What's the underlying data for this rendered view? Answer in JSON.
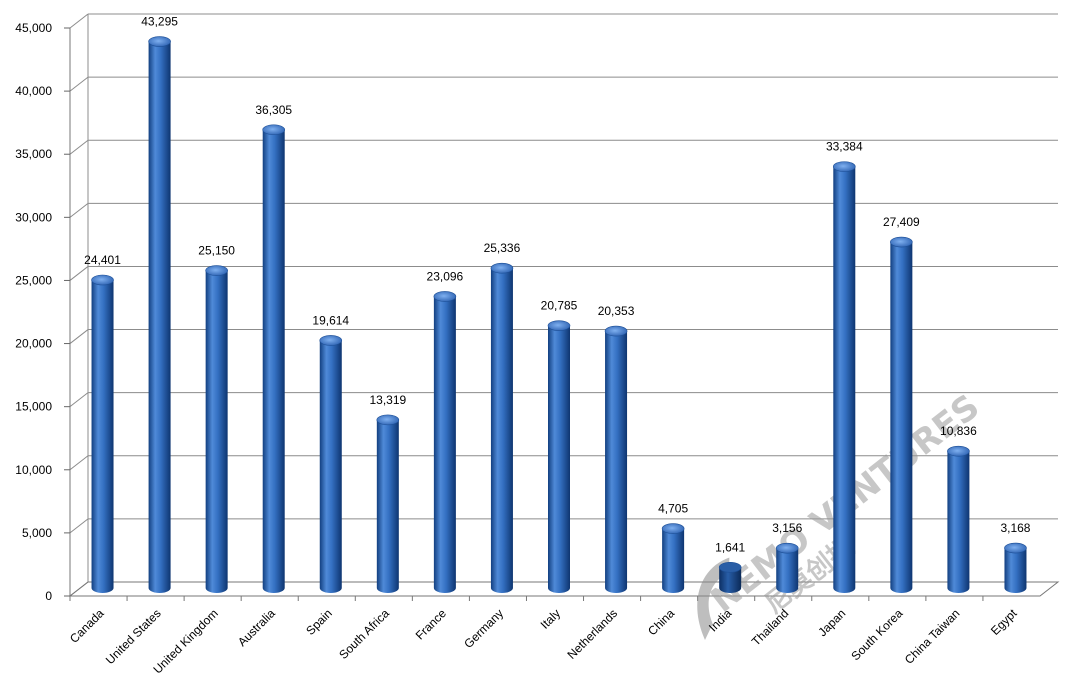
{
  "chart_data": {
    "type": "bar",
    "title": "",
    "xlabel": "",
    "ylabel": "",
    "ylim": [
      0,
      45000
    ],
    "yticks": [
      "0",
      "5,000",
      "10,000",
      "15,000",
      "20,000",
      "25,000",
      "30,000",
      "35,000",
      "40,000",
      "45,000"
    ],
    "grid": true,
    "categories": [
      "Canada",
      "United States",
      "United Kingdom",
      "Australia",
      "Spain",
      "South Africa",
      "France",
      "Germany",
      "Italy",
      "Netherlands",
      "China",
      "India",
      "Thailand",
      "Japan",
      "South Korea",
      "China Taiwan",
      "Egypt"
    ],
    "values": [
      24401,
      43295,
      25150,
      36305,
      19614,
      13319,
      23096,
      25336,
      20785,
      20353,
      4705,
      1641,
      3156,
      33384,
      27409,
      10836,
      3168
    ],
    "data_labels": [
      "24,401",
      "43,295",
      "25,150",
      "36,305",
      "19,614",
      "13,319",
      "23,096",
      "25,336",
      "20,785",
      "20,353",
      "4,705",
      "1,641",
      "3,156",
      "33,384",
      "27,409",
      "10,836",
      "3,168"
    ],
    "colors": {
      "bar": "#2f6fc4",
      "bar_dark": "#123f80",
      "bar_light": "#6ea3ea",
      "grid": "#8c8c8c"
    }
  },
  "watermark": {
    "text": "NEMO VENTURES",
    "subtext": "尼莫创投"
  }
}
